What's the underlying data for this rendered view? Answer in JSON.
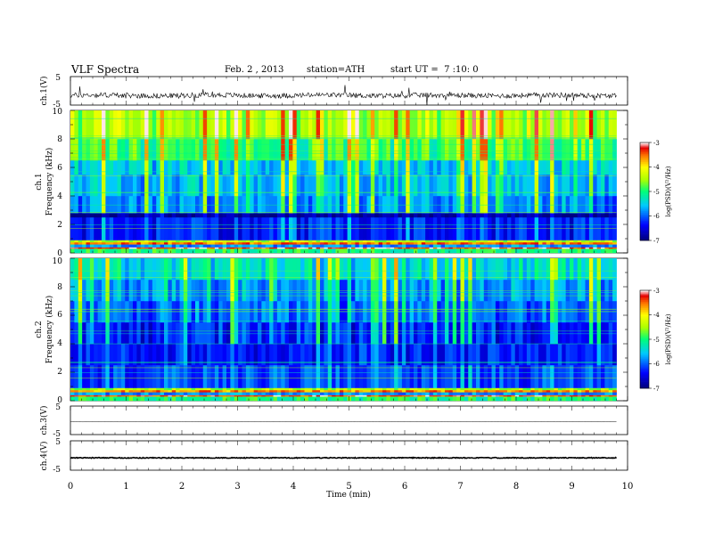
{
  "header": {
    "title": "VLF Spectra",
    "date": "Feb. 2 , 2013",
    "station": "station=ATH",
    "start": "start UT =  7 :10: 0"
  },
  "chart_data": [
    {
      "type": "line",
      "panel": "ch1-waveform",
      "ylabel": "ch.1(V)",
      "ylim": [
        -5,
        5
      ],
      "yticks": [
        "5",
        "-5"
      ],
      "xlim": [
        0,
        10
      ],
      "baseline": -1.6,
      "noise_amplitude": 0.9,
      "spike_amplitude": 3.5
    },
    {
      "type": "heatmap",
      "panel": "ch1-spectrogram",
      "ylabel": "ch.1",
      "ylabel2": "Frequency (kHz)",
      "ylim": [
        0,
        10
      ],
      "yticks": [
        "0",
        "2",
        "4",
        "6",
        "8",
        "10"
      ],
      "xlim": [
        0,
        9.8
      ],
      "colorbar": {
        "label": "log(PSD)(V²/Hz)",
        "range": [
          -7,
          -3
        ],
        "ticks": [
          "-3",
          "-4",
          "-5",
          "-6",
          "-7"
        ]
      },
      "bands": [
        {
          "from": 0.0,
          "to": 0.3,
          "level": -5.0
        },
        {
          "from": 0.3,
          "to": 0.4,
          "level": -3.2
        },
        {
          "from": 0.4,
          "to": 0.6,
          "level": -5.8
        },
        {
          "from": 0.6,
          "to": 0.75,
          "level": -3.5
        },
        {
          "from": 0.75,
          "to": 0.9,
          "level": -4.4
        },
        {
          "from": 0.9,
          "to": 2.5,
          "level": -6.4
        },
        {
          "from": 2.5,
          "to": 2.8,
          "level": -7.0
        },
        {
          "from": 2.8,
          "to": 4.0,
          "level": -6.0
        },
        {
          "from": 4.0,
          "to": 5.5,
          "level": -5.8
        },
        {
          "from": 5.5,
          "to": 6.5,
          "level": -5.7
        },
        {
          "from": 6.5,
          "to": 8.0,
          "level": -5.1
        },
        {
          "from": 8.0,
          "to": 10.0,
          "level": -4.6
        }
      ]
    },
    {
      "type": "heatmap",
      "panel": "ch2-spectrogram",
      "ylabel": "ch.2",
      "ylabel2": "Frequency (kHz)",
      "ylim": [
        0,
        10
      ],
      "yticks": [
        "0",
        "2",
        "4",
        "6",
        "8",
        "10"
      ],
      "xlim": [
        0,
        9.8
      ],
      "colorbar": {
        "label": "log(PSD)(V²/Hz)",
        "range": [
          -7,
          -3
        ],
        "ticks": [
          "-3",
          "-4",
          "-5",
          "-6",
          "-7"
        ]
      },
      "bands": [
        {
          "from": 0.0,
          "to": 0.3,
          "level": -5.0
        },
        {
          "from": 0.3,
          "to": 0.4,
          "level": -3.3
        },
        {
          "from": 0.4,
          "to": 0.6,
          "level": -5.8
        },
        {
          "from": 0.6,
          "to": 0.75,
          "level": -3.6
        },
        {
          "from": 0.75,
          "to": 0.9,
          "level": -4.5
        },
        {
          "from": 0.9,
          "to": 2.5,
          "level": -6.2
        },
        {
          "from": 2.5,
          "to": 4.0,
          "level": -6.4
        },
        {
          "from": 4.0,
          "to": 5.5,
          "level": -6.5
        },
        {
          "from": 5.5,
          "to": 7.0,
          "level": -6.2
        },
        {
          "from": 7.0,
          "to": 8.5,
          "level": -6.0
        },
        {
          "from": 8.5,
          "to": 10.0,
          "level": -5.6
        }
      ]
    },
    {
      "type": "line",
      "panel": "ch3-waveform",
      "ylabel": "ch.3(V)",
      "ylim": [
        -5,
        5
      ],
      "yticks": [
        "5",
        "-5"
      ],
      "xlim": [
        0,
        10
      ],
      "baseline": -0.5,
      "noise_amplitude": 0.05,
      "spike_amplitude": 0
    },
    {
      "type": "line",
      "panel": "ch4-waveform",
      "ylabel": "ch.4(V)",
      "ylim": [
        -5,
        5
      ],
      "yticks": [
        "5",
        "-5"
      ],
      "xlim": [
        0,
        10
      ],
      "baseline": -0.8,
      "noise_amplitude": 0.15,
      "spike_amplitude": 0
    }
  ],
  "xaxis": {
    "label": "Time (min)",
    "ticks": [
      "0",
      "1",
      "2",
      "3",
      "4",
      "5",
      "6",
      "7",
      "8",
      "9",
      "10"
    ]
  }
}
